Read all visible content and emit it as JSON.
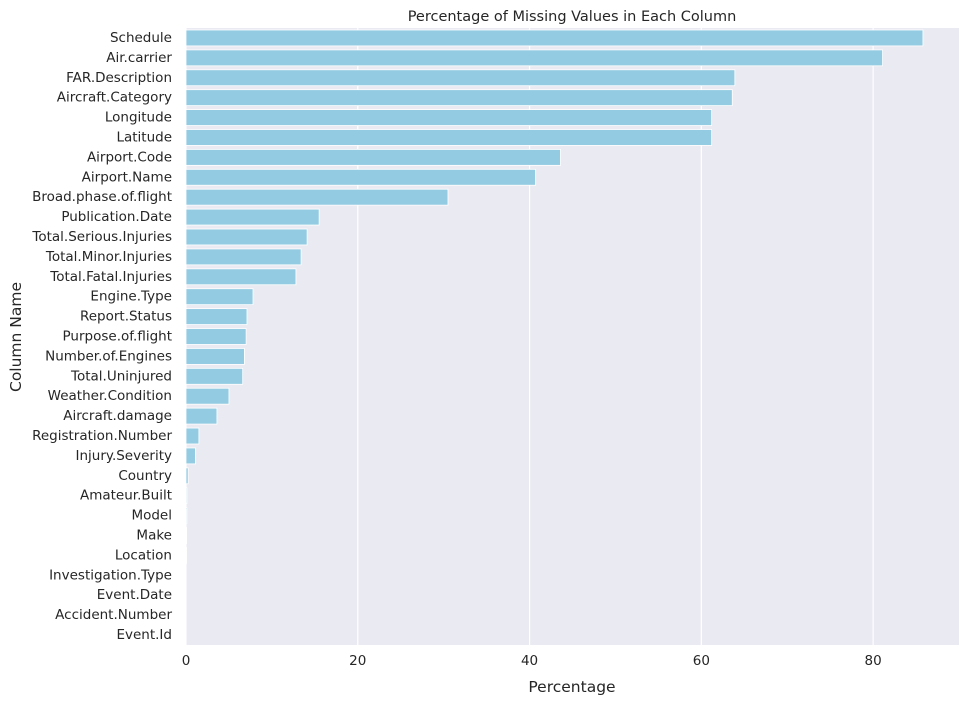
{
  "chart_data": {
    "type": "bar",
    "orientation": "horizontal",
    "title": "Percentage of Missing Values in Each Column",
    "xlabel": "Percentage",
    "ylabel": "Column Name",
    "xlim": [
      0,
      90
    ],
    "xticks": [
      0,
      20,
      40,
      60,
      80
    ],
    "grid": true,
    "colors": {
      "bar": "#92cbe2",
      "background": "#eaeaf2",
      "grid": "#ffffff"
    },
    "categories": [
      "Schedule",
      "Air.carrier",
      "FAR.Description",
      "Aircraft.Category",
      "Longitude",
      "Latitude",
      "Airport.Code",
      "Airport.Name",
      "Broad.phase.of.flight",
      "Publication.Date",
      "Total.Serious.Injuries",
      "Total.Minor.Injuries",
      "Total.Fatal.Injuries",
      "Engine.Type",
      "Report.Status",
      "Purpose.of.flight",
      "Number.of.Engines",
      "Total.Uninjured",
      "Weather.Condition",
      "Aircraft.damage",
      "Registration.Number",
      "Injury.Severity",
      "Country",
      "Amateur.Built",
      "Model",
      "Make",
      "Location",
      "Investigation.Type",
      "Event.Date",
      "Accident.Number",
      "Event.Id"
    ],
    "values": [
      85.8,
      81.1,
      63.9,
      63.6,
      61.2,
      61.2,
      43.6,
      40.7,
      30.5,
      15.5,
      14.1,
      13.4,
      12.8,
      7.8,
      7.1,
      7.0,
      6.8,
      6.6,
      5.0,
      3.6,
      1.5,
      1.1,
      0.25,
      0.11,
      0.1,
      0.07,
      0.06,
      0.0,
      0.0,
      0.0,
      0.0
    ]
  }
}
